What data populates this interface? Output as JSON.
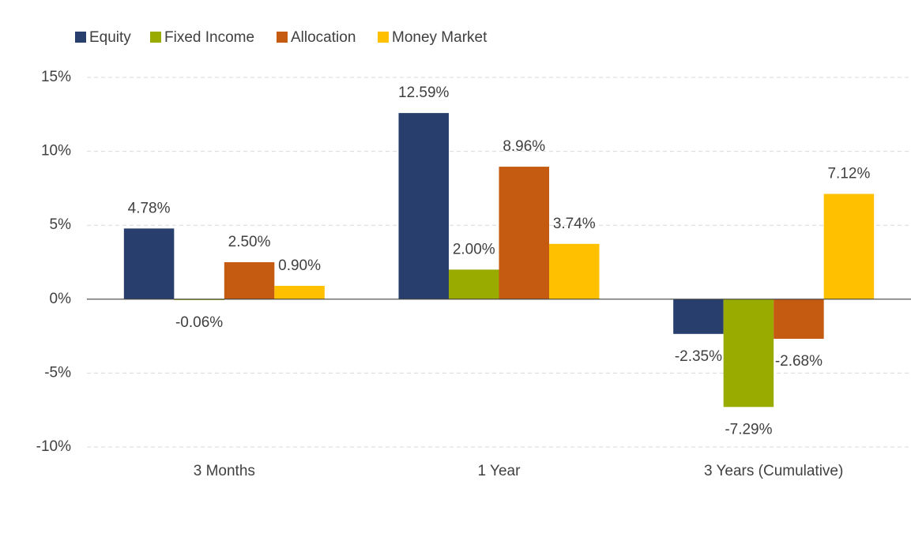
{
  "chart_data": {
    "type": "bar",
    "categories": [
      "3 Months",
      "1 Year",
      "3 Years (Cumulative)"
    ],
    "series": [
      {
        "name": "Equity",
        "color": "#283f6e",
        "values": [
          4.78,
          12.59,
          -2.35
        ],
        "value_labels": [
          "4.78%",
          "12.59%",
          "-2.35%"
        ]
      },
      {
        "name": "Fixed Income",
        "color": "#9aab00",
        "values": [
          -0.06,
          2.0,
          -7.29
        ],
        "value_labels": [
          "-0.06%",
          "2.00%",
          "-7.29%"
        ]
      },
      {
        "name": "Allocation",
        "color": "#c55a11",
        "values": [
          2.5,
          8.96,
          -2.68
        ],
        "value_labels": [
          "2.50%",
          "8.96%",
          "-2.68%"
        ]
      },
      {
        "name": "Money Market",
        "color": "#ffc000",
        "values": [
          0.9,
          3.74,
          7.12
        ],
        "value_labels": [
          "0.90%",
          "3.74%",
          "7.12%"
        ]
      }
    ],
    "ylim": [
      -10,
      15
    ],
    "yticks": [
      {
        "value": -10,
        "label": "-10%"
      },
      {
        "value": -5,
        "label": "-5%"
      },
      {
        "value": 0,
        "label": "0%"
      },
      {
        "value": 5,
        "label": "5%"
      },
      {
        "value": 10,
        "label": "10%"
      },
      {
        "value": 15,
        "label": "15%"
      }
    ],
    "grid": true,
    "legend": "top-left"
  }
}
